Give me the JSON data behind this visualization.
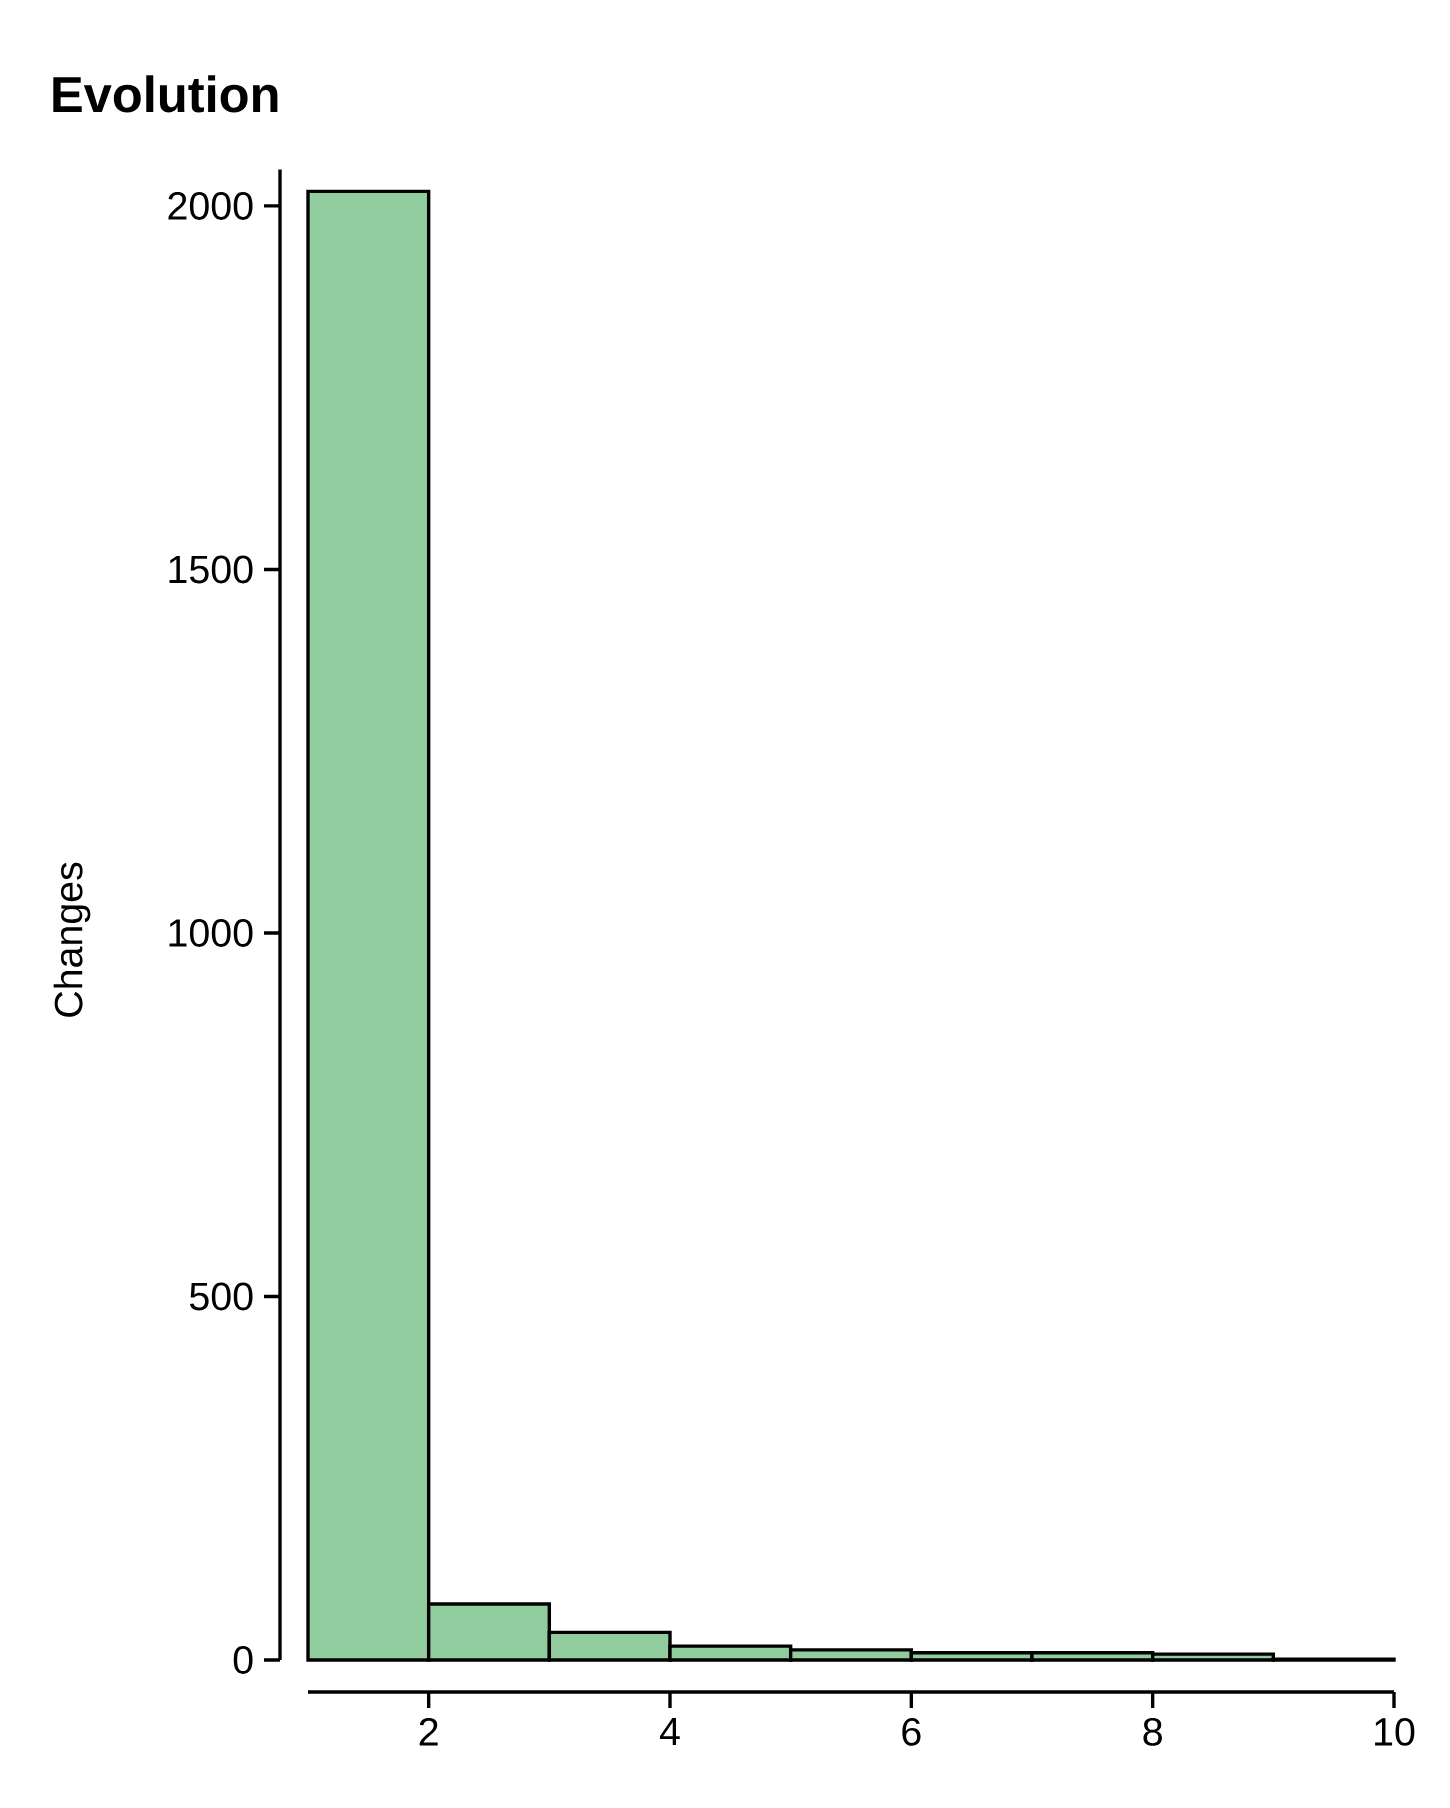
{
  "chart_data": {
    "type": "histogram",
    "title": "Evolution",
    "ylabel": "Changes",
    "bins": [
      1,
      2,
      3,
      4,
      5,
      6,
      7,
      8,
      9,
      10
    ],
    "values": [
      2020,
      77,
      38,
      19,
      14,
      10,
      10,
      8,
      1
    ],
    "color": "#90cc9e",
    "xlim": [
      1,
      10
    ],
    "ylim": [
      0,
      2050
    ],
    "xticks": [
      2,
      4,
      6,
      8,
      10
    ],
    "yticks": [
      0,
      500,
      1000,
      1500,
      2000
    ]
  }
}
